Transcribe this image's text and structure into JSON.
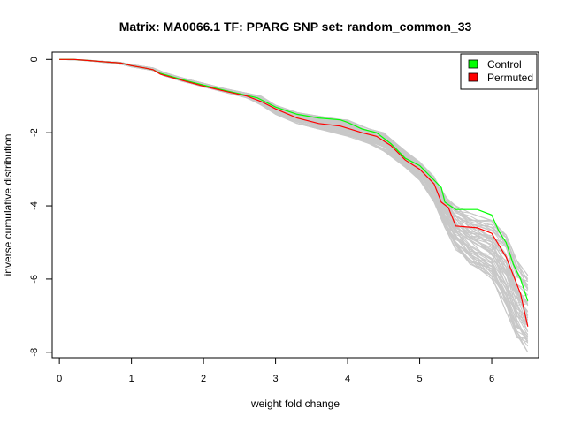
{
  "chart_data": {
    "type": "line",
    "title": "Matrix: MA0066.1 TF: PPARG SNP set: random_common_33",
    "xlabel": "weight fold change",
    "ylabel": "inverse cumulative distribution",
    "xlim": [
      -0.1,
      6.65
    ],
    "ylim": [
      -8.15,
      0.2
    ],
    "xticks": [
      0,
      1,
      2,
      3,
      4,
      5,
      6
    ],
    "yticks": [
      0,
      -2,
      -4,
      -6,
      -8
    ],
    "legend": {
      "placement": "top-right",
      "entries": [
        {
          "label": "Control",
          "color": "#00ff00"
        },
        {
          "label": "Permuted",
          "color": "#ff0000"
        }
      ]
    },
    "background_band": {
      "color": "#c8c8c8",
      "description_count": 60,
      "x": [
        0,
        0.2,
        0.4,
        0.6,
        0.85,
        1.0,
        1.3,
        1.45,
        1.7,
        2.0,
        2.3,
        2.6,
        2.8,
        3.0,
        3.3,
        3.6,
        4.0,
        4.3,
        4.5,
        4.8,
        5.0,
        5.2,
        5.35,
        5.5,
        5.7,
        6.0,
        6.2,
        6.35,
        6.5
      ],
      "lower": [
        0,
        -0.01,
        -0.04,
        -0.08,
        -0.13,
        -0.2,
        -0.3,
        -0.45,
        -0.6,
        -0.75,
        -0.9,
        -1.05,
        -1.25,
        -1.5,
        -1.75,
        -1.9,
        -2.1,
        -2.3,
        -2.5,
        -2.95,
        -3.3,
        -3.9,
        -4.6,
        -5.2,
        -5.6,
        -6.0,
        -6.9,
        -7.6,
        -8.0
      ],
      "upper": [
        0,
        0,
        -0.02,
        -0.05,
        -0.08,
        -0.14,
        -0.23,
        -0.35,
        -0.5,
        -0.65,
        -0.8,
        -0.92,
        -1.0,
        -1.25,
        -1.45,
        -1.55,
        -1.65,
        -1.9,
        -2.0,
        -2.5,
        -2.8,
        -3.2,
        -3.7,
        -4.0,
        -4.2,
        -4.4,
        -4.8,
        -5.5,
        -5.9
      ]
    },
    "series": [
      {
        "name": "Control",
        "color": "#00ff00",
        "x": [
          0,
          0.2,
          0.4,
          0.6,
          0.85,
          1.0,
          1.2,
          1.3,
          1.4,
          1.7,
          2.0,
          2.3,
          2.6,
          2.75,
          3.0,
          3.3,
          3.6,
          3.9,
          4.0,
          4.2,
          4.4,
          4.6,
          4.8,
          5.0,
          5.2,
          5.3,
          5.35,
          5.5,
          5.8,
          6.0,
          6.1,
          6.2,
          6.3,
          6.4,
          6.5
        ],
        "y": [
          0,
          0,
          -0.03,
          -0.06,
          -0.1,
          -0.17,
          -0.24,
          -0.28,
          -0.38,
          -0.55,
          -0.7,
          -0.85,
          -0.98,
          -1.05,
          -1.3,
          -1.5,
          -1.6,
          -1.65,
          -1.72,
          -1.9,
          -2.0,
          -2.3,
          -2.7,
          -2.9,
          -3.3,
          -3.5,
          -3.9,
          -4.1,
          -4.1,
          -4.25,
          -4.7,
          -5.0,
          -5.6,
          -6.0,
          -6.6
        ]
      },
      {
        "name": "Permuted",
        "color": "#ff0000",
        "x": [
          0,
          0.2,
          0.4,
          0.6,
          0.85,
          1.0,
          1.2,
          1.3,
          1.4,
          1.7,
          2.0,
          2.3,
          2.6,
          2.8,
          3.0,
          3.3,
          3.6,
          3.9,
          4.0,
          4.2,
          4.4,
          4.6,
          4.8,
          5.0,
          5.2,
          5.3,
          5.4,
          5.5,
          5.8,
          6.0,
          6.2,
          6.3,
          6.4,
          6.5
        ],
        "y": [
          0,
          0,
          -0.03,
          -0.06,
          -0.1,
          -0.17,
          -0.24,
          -0.28,
          -0.4,
          -0.57,
          -0.73,
          -0.87,
          -1.0,
          -1.15,
          -1.35,
          -1.6,
          -1.75,
          -1.82,
          -1.88,
          -2.0,
          -2.1,
          -2.35,
          -2.75,
          -3.0,
          -3.4,
          -3.9,
          -4.05,
          -4.55,
          -4.6,
          -4.75,
          -5.4,
          -5.9,
          -6.4,
          -7.3
        ]
      }
    ]
  }
}
